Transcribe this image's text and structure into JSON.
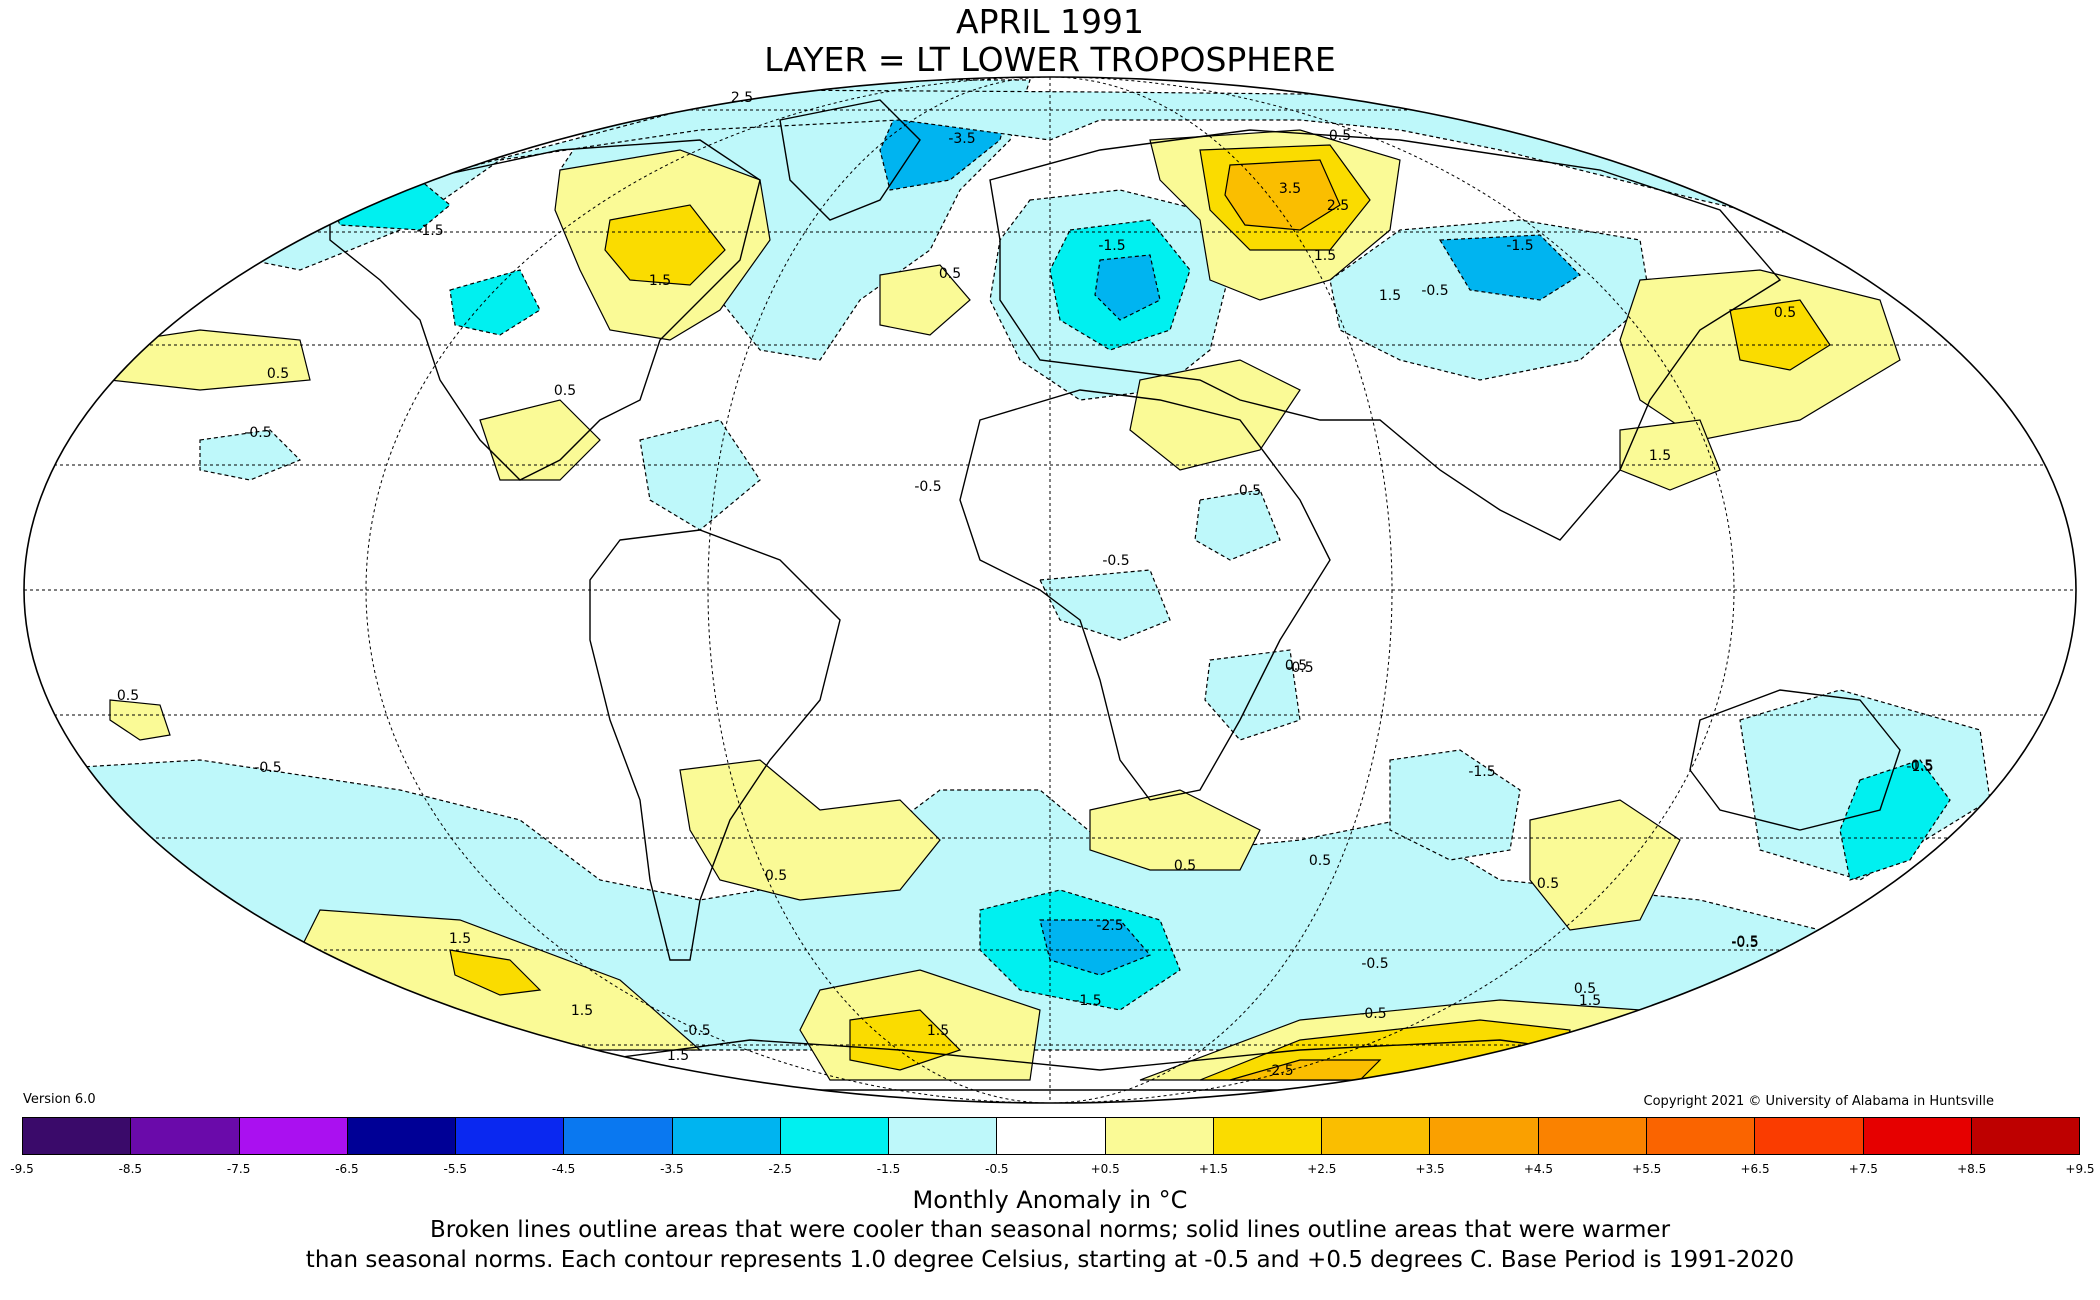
{
  "title": {
    "line1": "APRIL 1991",
    "line2": "LAYER = LT LOWER TROPOSPHERE"
  },
  "version": "Version 6.0",
  "copyright": "Copyright 2021 © University of Alabama in Huntsville",
  "colorbar": {
    "colors": [
      "#3a0a6a",
      "#6a0aaa",
      "#aa10f0",
      "#000096",
      "#0a28f0",
      "#0a78f0",
      "#00b4f0",
      "#00f0f0",
      "#bef8fa",
      "#ffffff",
      "#fafa96",
      "#fadc00",
      "#fabe00",
      "#faa000",
      "#fa8200",
      "#fa6400",
      "#fa3c00",
      "#e60000",
      "#be0000"
    ],
    "ticks": [
      "-9.5",
      "-8.5",
      "-7.5",
      "-6.5",
      "-5.5",
      "-4.5",
      "-3.5",
      "-2.5",
      "-1.5",
      "-0.5",
      "+0.5",
      "+1.5",
      "+2.5",
      "+3.5",
      "+4.5",
      "+5.5",
      "+6.5",
      "+7.5",
      "+8.5",
      "+9.5"
    ]
  },
  "unit_label": "Monthly Anomaly in °C",
  "caption": {
    "line1": "Broken lines outline areas that were cooler than seasonal norms; solid lines outline areas that were warmer",
    "line2": "than seasonal norms. Each contour represents 1.0 degree Celsius, starting at -0.5 and +0.5 degrees C. Base Period is 1991-2020"
  },
  "contour_labels": [
    "2.5",
    "-3.5",
    "0.5",
    "3.5",
    "2.5",
    "1.5",
    "-1.5",
    "1.5",
    "-1.5",
    "1.5",
    "0.5",
    "-1.5",
    "-0.5",
    "0.5",
    "0.5",
    "0.5",
    "-0.5",
    "1.5",
    "0.5",
    "-0.5",
    "-0.5",
    "0.5",
    "-0.5",
    "0.5",
    "-0.5",
    "-1.5",
    "0.5",
    "0.5",
    "0.5",
    "0.5",
    "-2.5",
    "-0.5",
    "-1.5",
    "1.5",
    "1.5",
    "1.5",
    "1.5",
    "-0.5",
    "1.5",
    "-2.5",
    "0.5",
    "-0.5",
    "-1.5",
    "0.5",
    "-0.5",
    "-0.5"
  ]
}
